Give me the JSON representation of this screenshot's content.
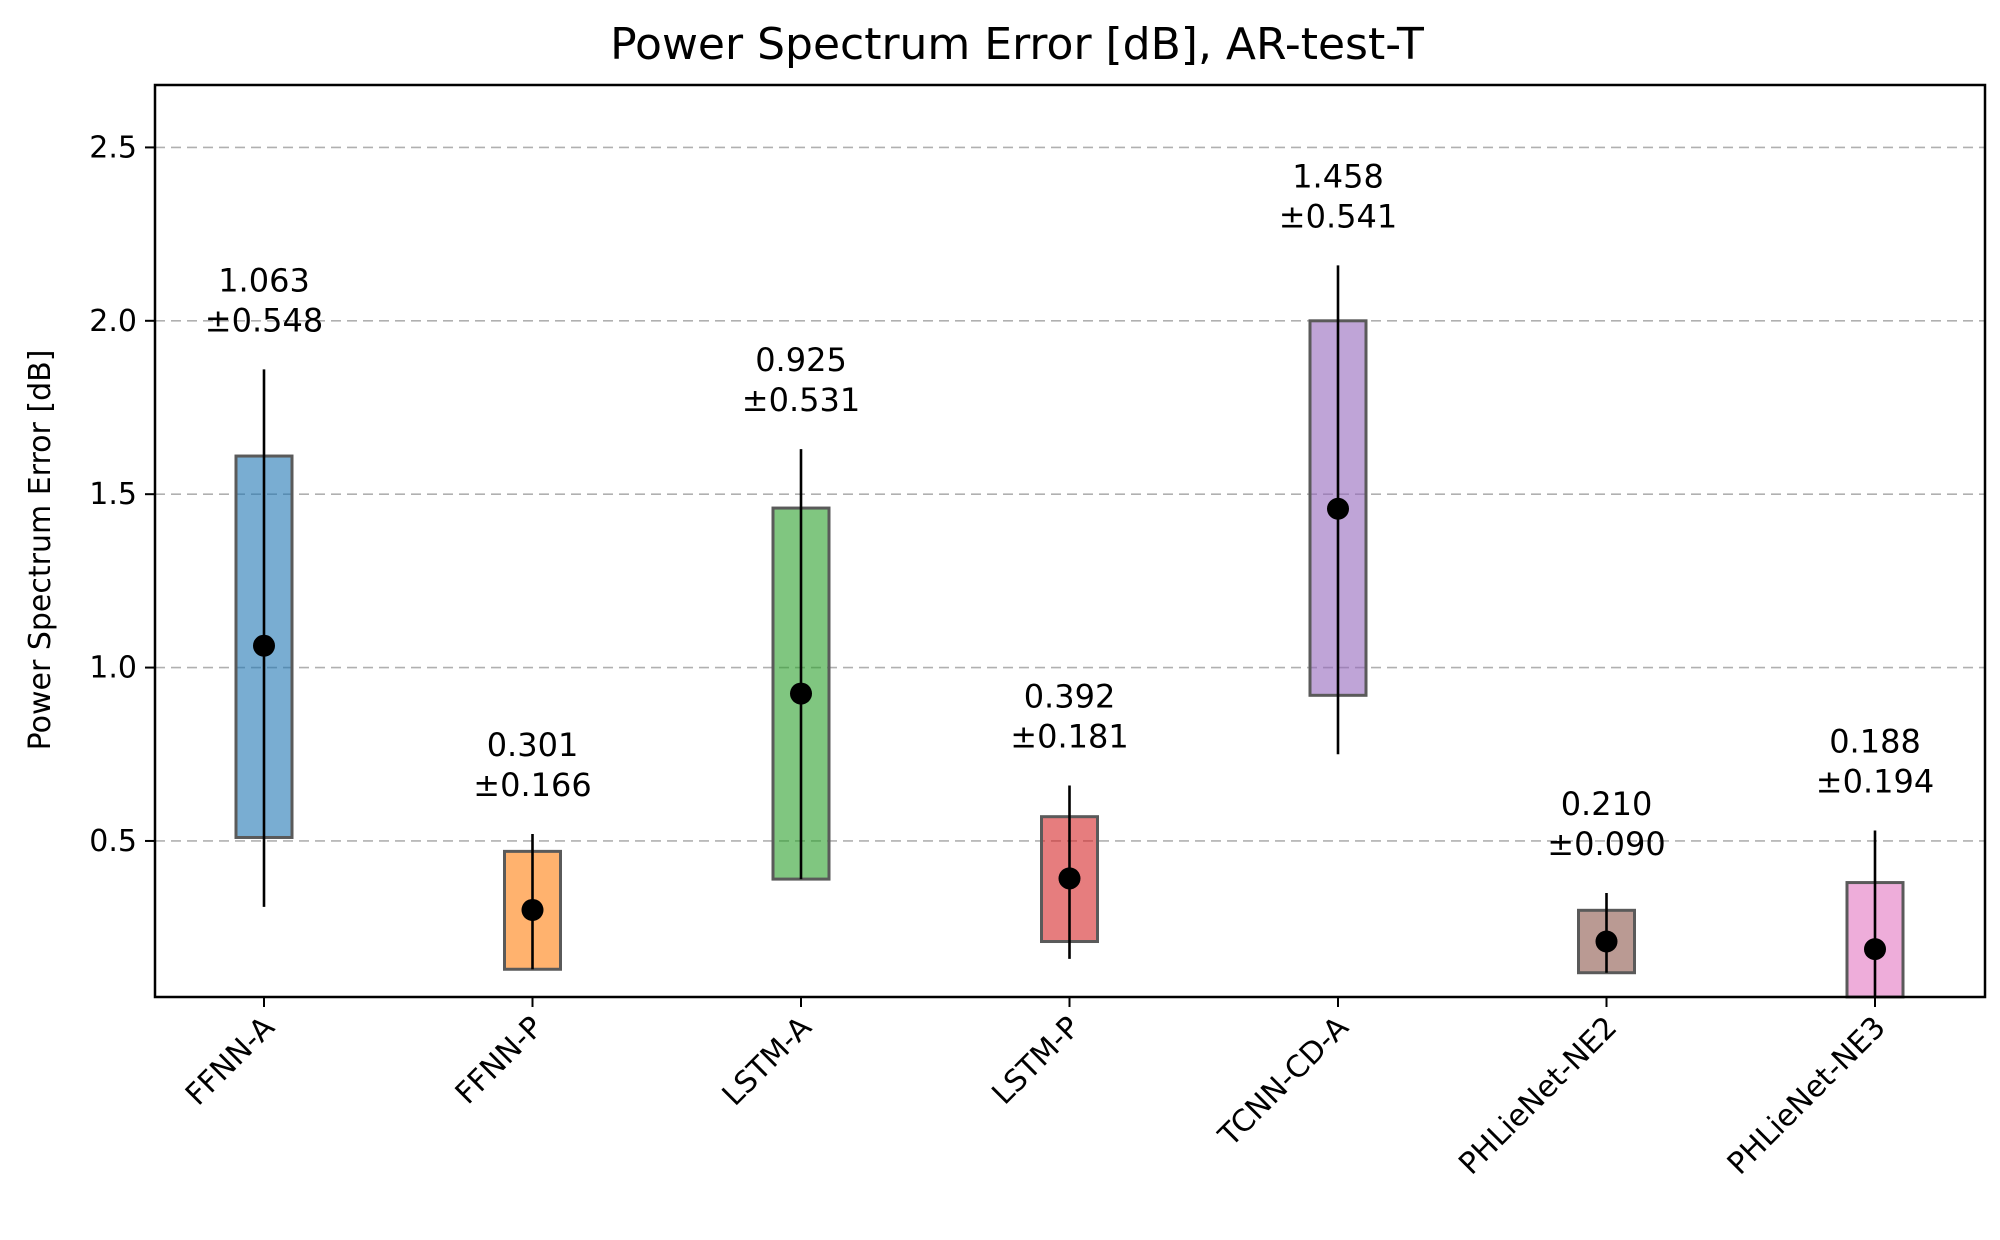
{
  "chart_data": {
    "type": "bar",
    "title": "Power Spectrum Error [dB], AR-test-T",
    "xlabel": "",
    "ylabel": "Power Spectrum Error [dB]",
    "ylim": [
      0.05,
      2.68
    ],
    "yticks": [
      "0.5",
      "1.0",
      "1.5",
      "2.0",
      "2.5"
    ],
    "grid": "y-dashed",
    "categories": [
      "FFNN-A",
      "FFNN-P",
      "LSTM-A",
      "LSTM-P",
      "TCNN-CD-A",
      "PHLieNet-NE2",
      "PHLieNet-NE3"
    ],
    "series": [
      {
        "box_low": [
          0.51,
          0.13,
          0.39,
          0.21,
          0.92,
          0.12,
          0.03
        ],
        "box_high": [
          1.61,
          0.47,
          1.46,
          0.57,
          2.0,
          0.3,
          0.38
        ],
        "whisker_low": [
          0.31,
          0.13,
          0.39,
          0.16,
          0.75,
          0.12,
          0.03
        ],
        "whisker_high": [
          1.86,
          0.52,
          1.63,
          0.66,
          2.16,
          0.35,
          0.53
        ],
        "mean": [
          1.063,
          0.301,
          0.925,
          0.392,
          1.458,
          0.21,
          0.188
        ],
        "std": [
          0.548,
          0.166,
          0.531,
          0.181,
          0.541,
          0.09,
          0.194
        ],
        "colors": [
          "#1f77b4",
          "#ff7f0e",
          "#2ca02c",
          "#d62728",
          "#9467bd",
          "#8c564b",
          "#e377c2"
        ]
      }
    ],
    "annotations": [
      {
        "mean": "1.063",
        "std": "±0.548"
      },
      {
        "mean": "0.301",
        "std": "±0.166"
      },
      {
        "mean": "0.925",
        "std": "±0.531"
      },
      {
        "mean": "0.392",
        "std": "±0.181"
      },
      {
        "mean": "1.458",
        "std": "±0.541"
      },
      {
        "mean": "0.210",
        "std": "±0.090"
      },
      {
        "mean": "0.188",
        "std": "±0.194"
      }
    ]
  }
}
